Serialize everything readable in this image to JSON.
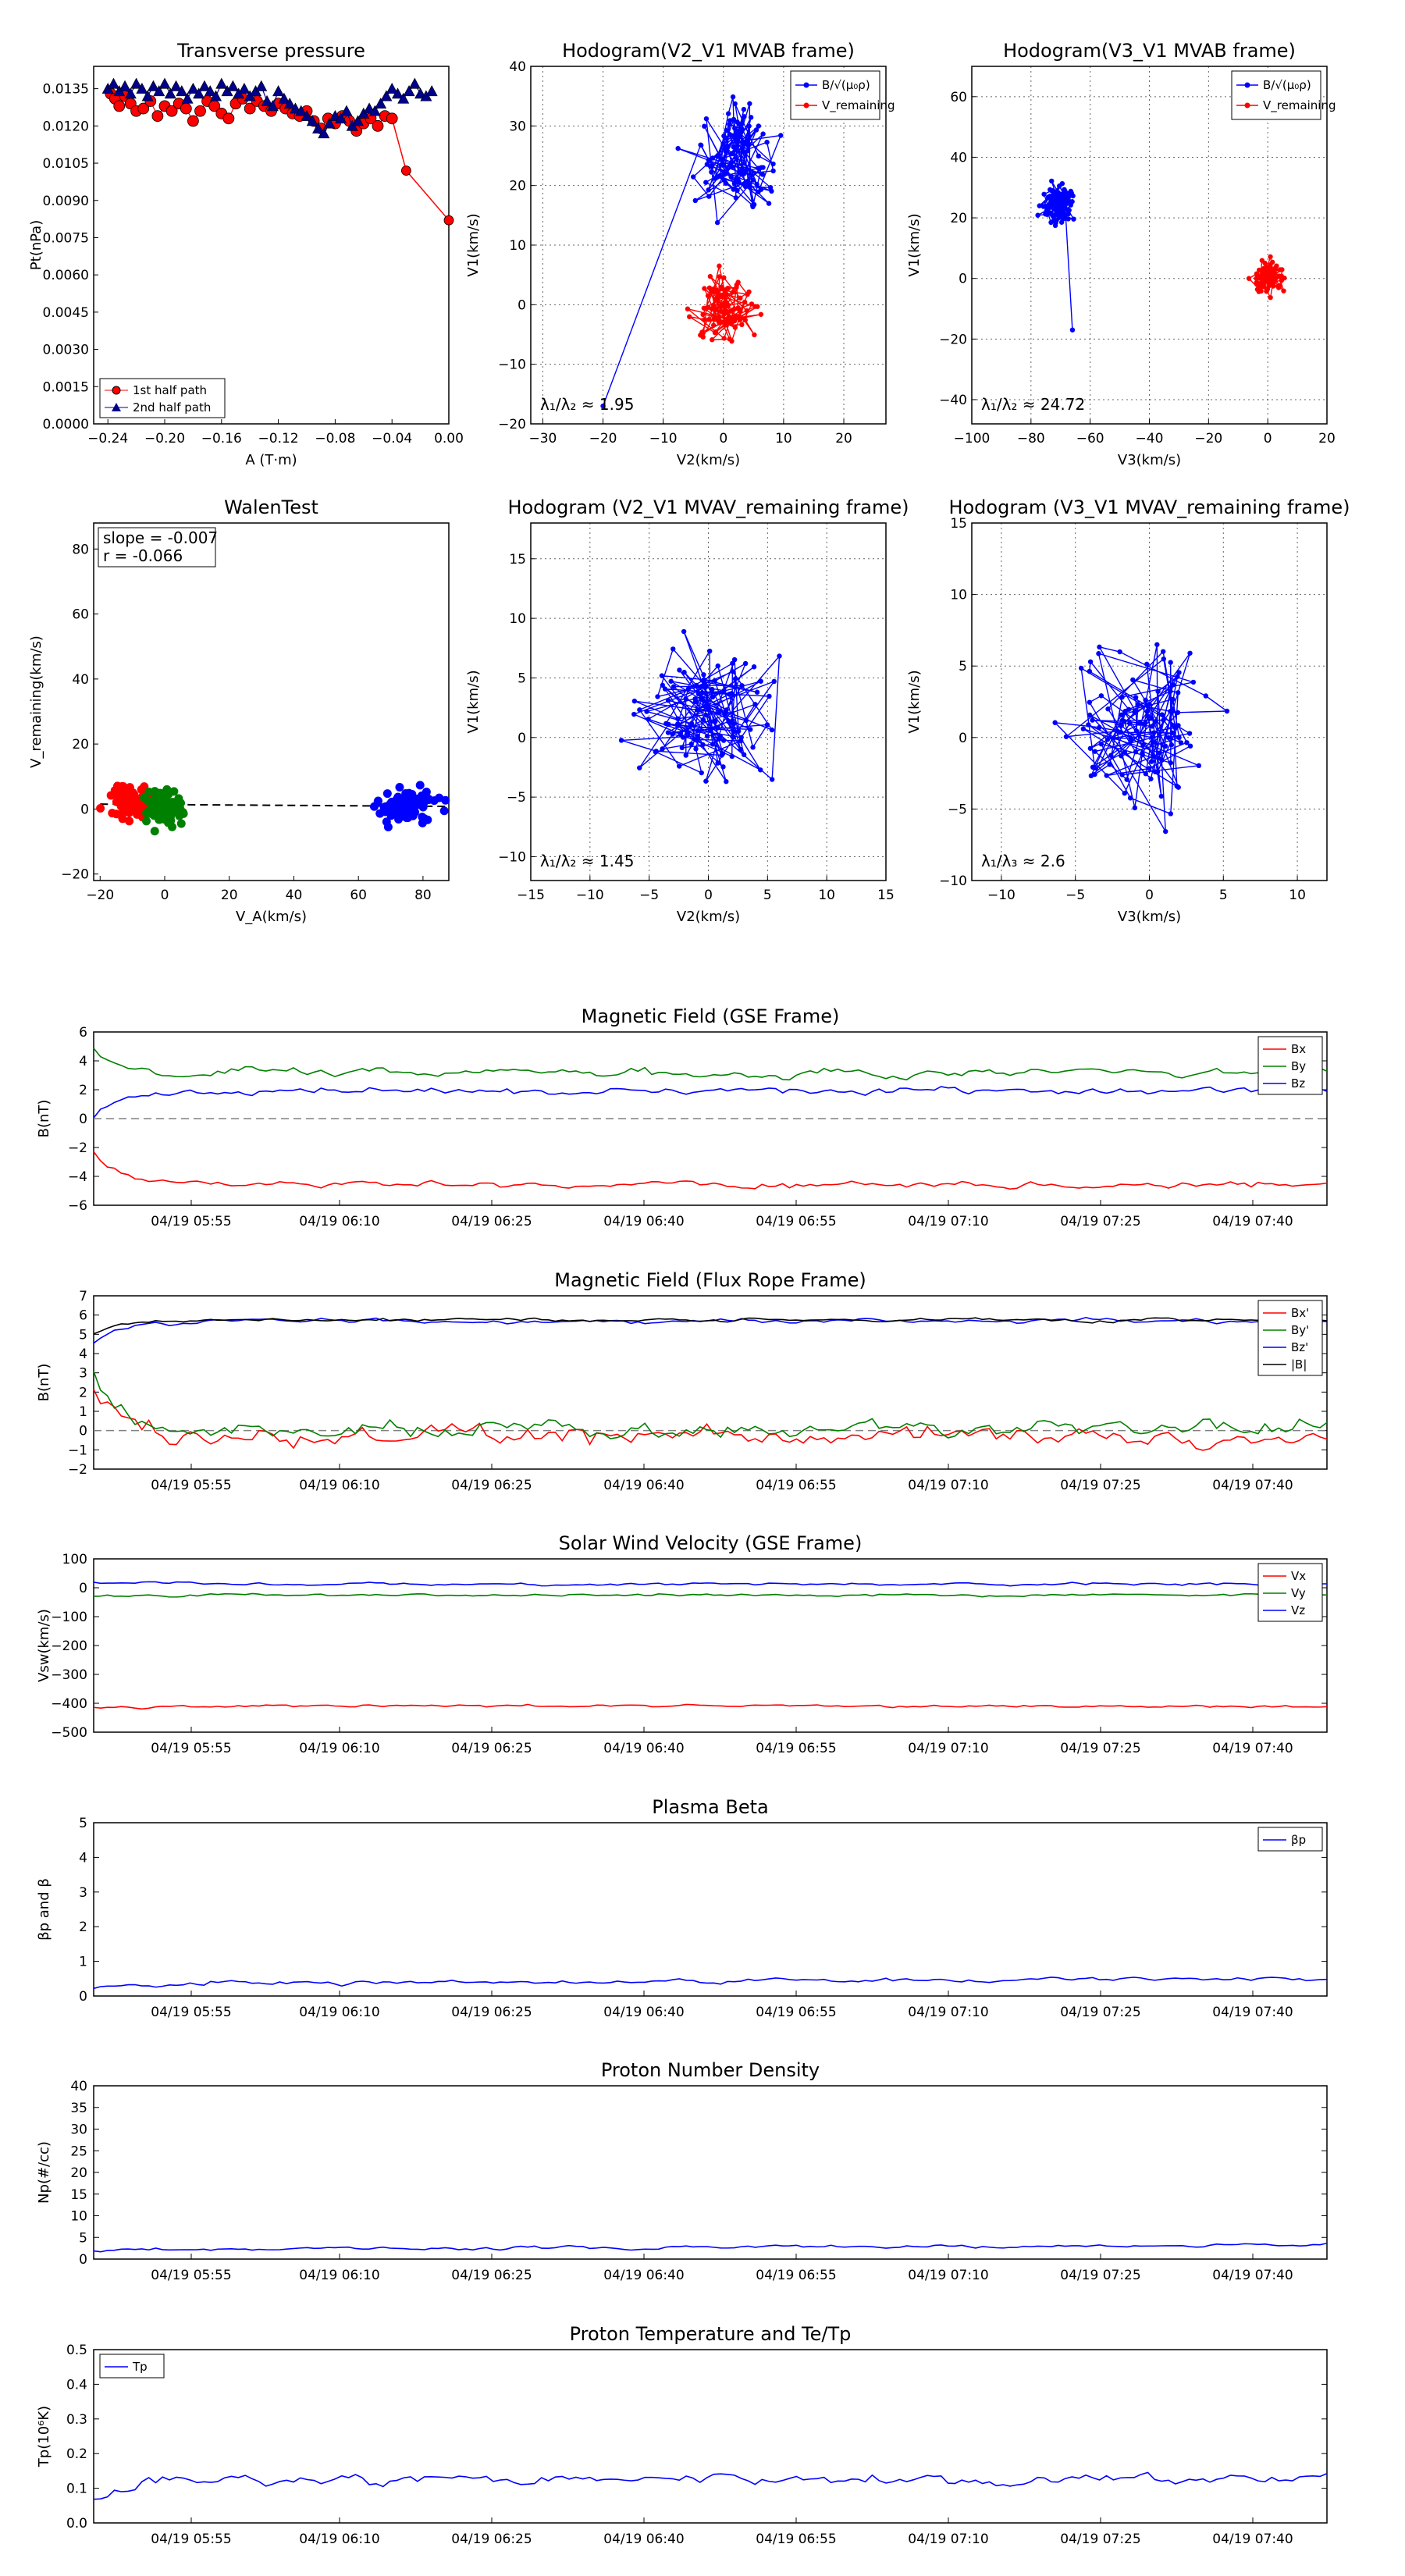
{
  "colors": {
    "red": "#ff0000",
    "green": "#008000",
    "blue": "#0000ff",
    "black": "#000000",
    "navy": "#00008b",
    "dash": "#808080"
  },
  "time_ticks": [
    "04/19 05:55",
    "04/19 06:10",
    "04/19 06:25",
    "04/19 06:40",
    "04/19 06:55",
    "04/19 07:10",
    "04/19 07:25",
    "04/19 07:40"
  ],
  "chart_data": [
    {
      "id": "tp",
      "type": "scatter",
      "title": "Transverse pressure",
      "xlabel": "A (T·m)",
      "ylabel": "Pt(nPa)",
      "xlim": [
        -0.25,
        0.0
      ],
      "ylim": [
        0.0,
        0.0144
      ],
      "xticks": [
        -0.24,
        -0.2,
        -0.16,
        -0.12,
        -0.08,
        -0.04,
        0.0
      ],
      "xtick_labels": [
        "−0.24",
        "−0.20",
        "−0.16",
        "−0.12",
        "−0.08",
        "−0.04",
        "0.00"
      ],
      "yticks": [
        0.0,
        0.0015,
        0.003,
        0.0045,
        0.006,
        0.0075,
        0.009,
        0.0105,
        0.012,
        0.0135
      ],
      "ytick_labels": [
        "0.0000",
        "0.0015",
        "0.0030",
        "0.0045",
        "0.0060",
        "0.0075",
        "0.0090",
        "0.0105",
        "0.0120",
        "0.0135"
      ],
      "legend": "lower-left",
      "series": [
        {
          "name": "1st half path",
          "color": "red",
          "marker": "circle",
          "connect": false,
          "x": [
            -0.238,
            -0.235,
            -0.232,
            -0.228,
            -0.224,
            -0.22,
            -0.215,
            -0.21,
            -0.205,
            -0.2,
            -0.195,
            -0.19,
            -0.185,
            -0.18,
            -0.175,
            -0.17,
            -0.165,
            -0.16,
            -0.155,
            -0.15,
            -0.145,
            -0.14,
            -0.135,
            -0.13,
            -0.125,
            -0.12,
            -0.115,
            -0.11,
            -0.105,
            -0.1,
            -0.095,
            -0.09,
            -0.085,
            -0.08,
            -0.075,
            -0.07,
            -0.065,
            -0.06,
            -0.055,
            -0.05,
            -0.045,
            -0.04
          ],
          "y": [
            0.0133,
            0.0131,
            0.0128,
            0.0132,
            0.0129,
            0.0126,
            0.0127,
            0.013,
            0.0124,
            0.0128,
            0.0126,
            0.0129,
            0.0127,
            0.0122,
            0.0126,
            0.013,
            0.0128,
            0.0125,
            0.0123,
            0.0129,
            0.0131,
            0.0127,
            0.013,
            0.0128,
            0.0126,
            0.0129,
            0.0127,
            0.0125,
            0.0124,
            0.0126,
            0.0122,
            0.0119,
            0.0123,
            0.0121,
            0.0124,
            0.0122,
            0.0118,
            0.0121,
            0.0123,
            0.012,
            0.0124,
            0.0123
          ]
        },
        {
          "name": "2nd half path",
          "color": "navy",
          "marker": "triangle",
          "connect": true,
          "x": [
            -0.24,
            -0.236,
            -0.232,
            -0.228,
            -0.224,
            -0.22,
            -0.216,
            -0.212,
            -0.208,
            -0.204,
            -0.2,
            -0.196,
            -0.192,
            -0.188,
            -0.184,
            -0.18,
            -0.176,
            -0.172,
            -0.168,
            -0.164,
            -0.16,
            -0.156,
            -0.152,
            -0.148,
            -0.144,
            -0.14,
            -0.136,
            -0.132,
            -0.128,
            -0.124,
            -0.12,
            -0.116,
            -0.112,
            -0.108,
            -0.104,
            -0.1,
            -0.096,
            -0.092,
            -0.088,
            -0.084,
            -0.08,
            -0.076,
            -0.072,
            -0.068,
            -0.064,
            -0.06,
            -0.056,
            -0.052,
            -0.048,
            -0.044,
            -0.04,
            -0.036,
            -0.032,
            -0.028,
            -0.024,
            -0.02,
            -0.016,
            -0.012
          ],
          "y": [
            0.0135,
            0.0137,
            0.0134,
            0.0136,
            0.0133,
            0.0137,
            0.0135,
            0.0132,
            0.0136,
            0.0134,
            0.0137,
            0.0133,
            0.0136,
            0.0134,
            0.0131,
            0.0135,
            0.0133,
            0.0136,
            0.0134,
            0.0132,
            0.0137,
            0.0134,
            0.0136,
            0.0133,
            0.0135,
            0.0132,
            0.0134,
            0.0136,
            0.013,
            0.0128,
            0.0134,
            0.0131,
            0.0129,
            0.0127,
            0.0126,
            0.0124,
            0.0122,
            0.0119,
            0.0117,
            0.0121,
            0.0124,
            0.0123,
            0.0126,
            0.012,
            0.0122,
            0.0125,
            0.0127,
            0.0126,
            0.0129,
            0.0132,
            0.0135,
            0.0133,
            0.0131,
            0.0134,
            0.0137,
            0.0133,
            0.0132,
            0.0134
          ]
        }
      ],
      "extra_path": {
        "color": "red",
        "x": [
          -0.04,
          -0.03,
          0.0
        ],
        "y": [
          0.0123,
          0.0102,
          0.0082
        ]
      }
    },
    {
      "id": "h1",
      "type": "line",
      "title": "Hodogram(V2_V1 MVAB frame)",
      "xlabel": "V2(km/s)",
      "ylabel": "V1(km/s)",
      "xlim": [
        -32,
        27
      ],
      "ylim": [
        -20,
        40
      ],
      "xticks": [
        -30,
        -20,
        -10,
        0,
        10,
        20
      ],
      "xtick_labels": [
        "−30",
        "−20",
        "−10",
        "0",
        "10",
        "20"
      ],
      "yticks": [
        -20,
        -10,
        0,
        10,
        20,
        30,
        40
      ],
      "ytick_labels": [
        "−20",
        "−10",
        "0",
        "10",
        "20",
        "30",
        "40"
      ],
      "legend": "top-right",
      "annotation": "λ₁/λ₂ ≈ 1.95",
      "series": [
        {
          "name": "B/√(μ₀ρ)",
          "color": "blue",
          "seed": 11,
          "cx": 2,
          "cy": 24,
          "sx": 5,
          "sy": 7,
          "n": 110,
          "extra": [
            [
              -20,
              -17
            ]
          ]
        },
        {
          "name": "V_remaining",
          "color": "red",
          "seed": 23,
          "cx": 0,
          "cy": 0,
          "sx": 3.5,
          "sy": 4.5,
          "n": 100
        }
      ]
    },
    {
      "id": "h2",
      "type": "line",
      "title": "Hodogram(V3_V1 MVAB frame)",
      "xlabel": "V3(km/s)",
      "ylabel": "V1(km/s)",
      "xlim": [
        -100,
        20
      ],
      "ylim": [
        -48,
        70
      ],
      "xticks": [
        -100,
        -80,
        -60,
        -40,
        -20,
        0,
        20
      ],
      "xtick_labels": [
        "−100",
        "−80",
        "−60",
        "−40",
        "−20",
        "0",
        "20"
      ],
      "yticks": [
        -40,
        -20,
        0,
        20,
        40,
        60
      ],
      "ytick_labels": [
        "−40",
        "−20",
        "0",
        "20",
        "40",
        "60"
      ],
      "legend": "top-right",
      "annotation": "λ₁/λ₂ ≈ 24.72",
      "series": [
        {
          "name": "B/√(μ₀ρ)",
          "color": "blue",
          "seed": 31,
          "cx": -71,
          "cy": 25,
          "sx": 4,
          "sy": 5,
          "n": 110,
          "extra": [
            [
              -66,
              -17
            ]
          ]
        },
        {
          "name": "V_remaining",
          "color": "red",
          "seed": 37,
          "cx": 0,
          "cy": 0,
          "sx": 3.5,
          "sy": 4,
          "n": 100
        }
      ]
    },
    {
      "id": "walen",
      "type": "scatter",
      "title": "WalenTest",
      "xlabel": "V_A(km/s)",
      "ylabel": "V_remaining(km/s)",
      "xlim": [
        -22,
        88
      ],
      "ylim": [
        -22,
        88
      ],
      "xticks": [
        -20,
        0,
        20,
        40,
        60,
        80
      ],
      "xtick_labels": [
        "−20",
        "0",
        "20",
        "40",
        "60",
        "80"
      ],
      "yticks": [
        -20,
        0,
        20,
        40,
        60,
        80
      ],
      "ytick_labels": [
        "−20",
        "0",
        "20",
        "40",
        "60",
        "80"
      ],
      "slope_text": "slope = -0.007",
      "r_text": "r = -0.066",
      "fit_line": {
        "x": [
          -20,
          88
        ],
        "y": [
          1.5,
          0.8
        ]
      },
      "series": [
        {
          "name": "red",
          "color": "red",
          "seed": 41,
          "cx": -10,
          "cy": 2,
          "sx": 6,
          "sy": 4,
          "n": 90
        },
        {
          "name": "green",
          "color": "green",
          "seed": 43,
          "cx": 0,
          "cy": 0,
          "sx": 5,
          "sy": 4,
          "n": 90
        },
        {
          "name": "blue",
          "color": "blue",
          "seed": 47,
          "cx": 75,
          "cy": 1,
          "sx": 7,
          "sy": 4.5,
          "n": 90
        }
      ]
    },
    {
      "id": "h3",
      "type": "line",
      "title": "Hodogram (V2_V1 MVAV_remaining frame)",
      "xlabel": "V2(km/s)",
      "ylabel": "V1(km/s)",
      "xlim": [
        -15,
        15
      ],
      "ylim": [
        -12,
        18
      ],
      "xticks": [
        -15,
        -10,
        -5,
        0,
        5,
        10,
        15
      ],
      "xtick_labels": [
        "−15",
        "−10",
        "−5",
        "0",
        "5",
        "10",
        "15"
      ],
      "yticks": [
        -10,
        -5,
        0,
        5,
        10,
        15
      ],
      "ytick_labels": [
        "−10",
        "−5",
        "0",
        "5",
        "10",
        "15"
      ],
      "annotation": "λ₁/λ₂ ≈ 1.45",
      "series": [
        {
          "name": "hodogram",
          "color": "blue",
          "seed": 53,
          "cx": 0,
          "cy": 2,
          "sx": 4.5,
          "sy": 4.5,
          "n": 120
        }
      ]
    },
    {
      "id": "h4",
      "type": "line",
      "title": "Hodogram (V3_V1 MVAV_remaining frame)",
      "xlabel": "V3(km/s)",
      "ylabel": "V1(km/s)",
      "xlim": [
        -12,
        12
      ],
      "ylim": [
        -10,
        15
      ],
      "xticks": [
        -10,
        -5,
        0,
        5,
        10
      ],
      "xtick_labels": [
        "−10",
        "−5",
        "0",
        "5",
        "10"
      ],
      "yticks": [
        -10,
        -5,
        0,
        5,
        10,
        15
      ],
      "ytick_labels": [
        "−10",
        "−5",
        "0",
        "5",
        "10",
        "15"
      ],
      "annotation": "λ₁/λ₃ ≈ 2.6",
      "series": [
        {
          "name": "hodogram",
          "color": "blue",
          "seed": 59,
          "cx": 0,
          "cy": 1,
          "sx": 3.8,
          "sy": 4.2,
          "n": 120
        }
      ]
    },
    {
      "id": "ts1",
      "type": "line",
      "title": "Magnetic Field (GSE Frame)",
      "ylabel": "B(nT)",
      "ylim": [
        -6,
        6
      ],
      "yticks": [
        -6,
        -4,
        -2,
        0,
        2,
        4,
        6
      ],
      "ytick_labels": [
        "−6",
        "−4",
        "−2",
        "0",
        "2",
        "4",
        "6"
      ],
      "zero_line": true,
      "legend": "top-right",
      "series": [
        {
          "name": "Bx",
          "color": "red",
          "start": -2.4,
          "base": -4.6,
          "noise": 0.15,
          "seed": 61
        },
        {
          "name": "By",
          "color": "green",
          "start": 5.0,
          "base": 3.2,
          "noise": 0.2,
          "seed": 67
        },
        {
          "name": "Bz",
          "color": "blue",
          "start": 0.1,
          "base": 1.9,
          "noise": 0.15,
          "seed": 71
        }
      ]
    },
    {
      "id": "ts2",
      "type": "line",
      "title": "Magnetic Field (Flux Rope Frame)",
      "ylabel": "B(nT)",
      "ylim": [
        -2,
        7
      ],
      "yticks": [
        -2,
        -1,
        0,
        1,
        2,
        3,
        4,
        5,
        6,
        7
      ],
      "ytick_labels": [
        "−2",
        "−1",
        "0",
        "1",
        "2",
        "3",
        "4",
        "5",
        "6",
        "7"
      ],
      "zero_line": true,
      "legend": "top-right",
      "series": [
        {
          "name": "Bx'",
          "color": "red",
          "start": 2.0,
          "base": -0.3,
          "noise": 0.35,
          "seed": 73
        },
        {
          "name": "By'",
          "color": "green",
          "start": 3.0,
          "base": 0.1,
          "noise": 0.3,
          "seed": 79
        },
        {
          "name": "Bz'",
          "color": "blue",
          "start": 4.5,
          "base": 5.7,
          "noise": 0.07,
          "seed": 83
        },
        {
          "name": "|B|",
          "color": "black",
          "start": 5.0,
          "base": 5.75,
          "noise": 0.06,
          "seed": 89
        }
      ]
    },
    {
      "id": "ts3",
      "type": "line",
      "title": "Solar Wind Velocity (GSE Frame)",
      "ylabel": "Vsw(km/s)",
      "ylim": [
        -500,
        100
      ],
      "yticks": [
        -500,
        -400,
        -300,
        -200,
        -100,
        0,
        100
      ],
      "ytick_labels": [
        "−500",
        "−400",
        "−300",
        "−200",
        "−100",
        "0",
        "100"
      ],
      "legend": "top-right",
      "series": [
        {
          "name": "Vx",
          "color": "red",
          "start": -410,
          "base": -410,
          "noise": 3,
          "seed": 97
        },
        {
          "name": "Vy",
          "color": "green",
          "start": -30,
          "base": -25,
          "noise": 3,
          "seed": 101
        },
        {
          "name": "Vz",
          "color": "blue",
          "start": 20,
          "base": 12,
          "noise": 3,
          "seed": 103
        }
      ]
    },
    {
      "id": "ts4",
      "type": "line",
      "title": "Plasma Beta",
      "ylabel": "βp and β",
      "ylim": [
        0,
        5
      ],
      "yticks": [
        0,
        1,
        2,
        3,
        4,
        5
      ],
      "ytick_labels": [
        "0",
        "1",
        "2",
        "3",
        "4",
        "5"
      ],
      "legend": "top-right",
      "series": [
        {
          "name": "βp",
          "color": "blue",
          "start": 0.22,
          "base": 0.35,
          "noise": 0.04,
          "seed": 107,
          "trend": 0.15
        }
      ]
    },
    {
      "id": "ts5",
      "type": "line",
      "title": "Proton Number Density",
      "ylabel": "Np(#/cc)",
      "ylim": [
        0,
        40
      ],
      "yticks": [
        0,
        5,
        10,
        15,
        20,
        25,
        30,
        35,
        40
      ],
      "ytick_labels": [
        "0",
        "5",
        "10",
        "15",
        "20",
        "25",
        "30",
        "35",
        "40"
      ],
      "series": [
        {
          "name": "Np",
          "color": "blue",
          "start": 2.0,
          "base": 2.2,
          "noise": 0.25,
          "seed": 109,
          "trend": 1.0
        }
      ]
    },
    {
      "id": "ts6",
      "type": "line",
      "title": "Proton Temperature and Te/Tp",
      "ylabel": "Tp(10⁶K)",
      "ylim": [
        0,
        0.5
      ],
      "yticks": [
        0,
        0.1,
        0.2,
        0.3,
        0.4,
        0.5
      ],
      "ytick_labels": [
        "0.0",
        "0.1",
        "0.2",
        "0.3",
        "0.4",
        "0.5"
      ],
      "legend": "top-left",
      "series": [
        {
          "name": "Tp",
          "color": "blue",
          "start": 0.07,
          "base": 0.125,
          "noise": 0.01,
          "seed": 113
        }
      ]
    }
  ]
}
